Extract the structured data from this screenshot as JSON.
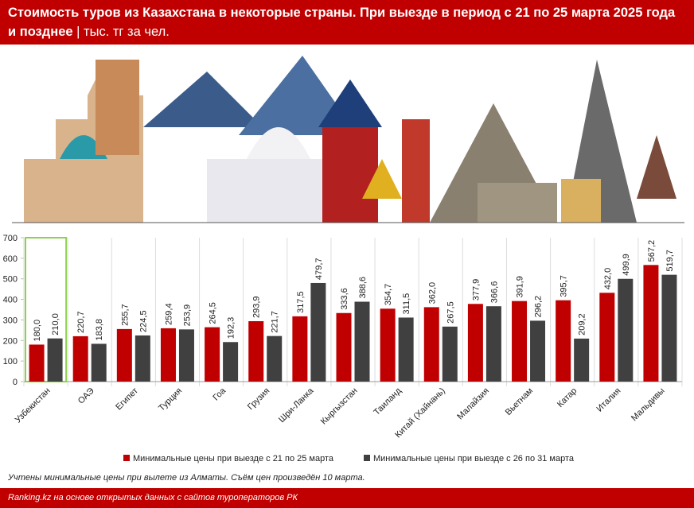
{
  "chart_data": {
    "type": "bar",
    "title": "Стоимость туров из Казахстана в некоторые страны. При выезде в период с 21 по 25 марта 2025 года и позднее",
    "subtitle": "тыс. тг за чел.",
    "categories": [
      "Узбекистан",
      "ОАЭ",
      "Египет",
      "Турция",
      "Гоа",
      "Грузия",
      "Шри-Ланка",
      "Кыргызстан",
      "Таиланд",
      "Китай (Хайнань)",
      "Малайзия",
      "Вьетнам",
      "Катар",
      "Италия",
      "Мальдивы"
    ],
    "series": [
      {
        "name": "Минимальные цены при выезде с 21 по 25 марта",
        "color": "#c00000",
        "values": [
          180.0,
          220.7,
          255.7,
          259.4,
          264.5,
          293.9,
          317.5,
          333.6,
          354.7,
          362.0,
          377.9,
          391.9,
          395.7,
          432.0,
          567.2
        ],
        "value_labels": [
          "180,0",
          "220,7",
          "255,7",
          "259,4",
          "264,5",
          "293,9",
          "317,5",
          "333,6",
          "354,7",
          "362,0",
          "377,9",
          "391,9",
          "395,7",
          "432,0",
          "567,2"
        ]
      },
      {
        "name": "Минимальные цены при выезде с 26 по 31 марта",
        "color": "#404040",
        "values": [
          210.0,
          183.8,
          224.5,
          253.9,
          192.3,
          221.7,
          479.7,
          388.6,
          311.5,
          267.5,
          366.6,
          296.2,
          209.2,
          499.9,
          519.7
        ],
        "value_labels": [
          "210,0",
          "183,8",
          "224,5",
          "253,9",
          "192,3",
          "221,7",
          "479,7",
          "388,6",
          "311,5",
          "267,5",
          "366,6",
          "296,2",
          "209,2",
          "499,9",
          "519,7"
        ]
      }
    ],
    "ylim": [
      0,
      700
    ],
    "yticks": [
      0,
      100,
      200,
      300,
      400,
      500,
      600,
      700
    ],
    "note": "Учтены минимальные цены при вылете из Алматы. Съём цен произведён 10 марта.",
    "source": "Ranking.kz на основе открытых данных с сайтов туроператоров РК"
  }
}
